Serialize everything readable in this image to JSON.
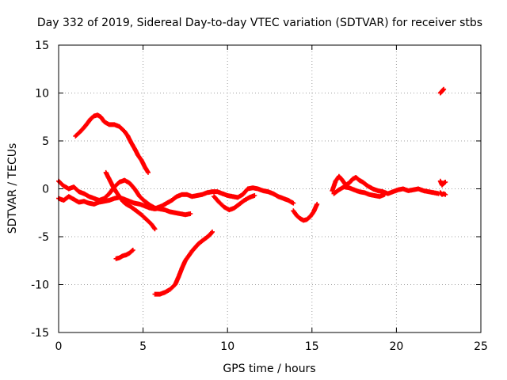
{
  "chart_data": {
    "type": "scatter",
    "title": "Day 332 of 2019, Sidereal Day-to-day VTEC variation (SDTVAR) for receiver stbs",
    "xlabel": "GPS time / hours",
    "ylabel": "SDTVAR / TECUs",
    "xlim": [
      0,
      25
    ],
    "ylim": [
      -15,
      15
    ],
    "xticks": [
      0,
      5,
      10,
      15,
      20,
      25
    ],
    "yticks": [
      -15,
      -10,
      -5,
      0,
      5,
      10,
      15
    ],
    "xtick_labels": [
      "0",
      "5",
      "10",
      "15",
      "20",
      "25"
    ],
    "ytick_labels": [
      "-15",
      "-10",
      "-5",
      "0",
      "5",
      "10",
      "15"
    ],
    "grid": true,
    "marker": "plus",
    "series": [
      {
        "name": "arc-high-morning",
        "color": "#ff0000",
        "x": [
          1.0,
          1.3,
          1.6,
          1.9,
          2.1,
          2.3,
          2.5,
          2.7,
          3.0,
          3.3,
          3.6,
          3.9,
          4.1,
          4.3,
          4.5,
          4.7,
          4.9,
          5.1,
          5.3
        ],
        "y": [
          5.5,
          6.0,
          6.6,
          7.3,
          7.6,
          7.7,
          7.5,
          7.0,
          6.7,
          6.7,
          6.5,
          6.0,
          5.5,
          4.8,
          4.2,
          3.5,
          3.0,
          2.3,
          1.7
        ]
      },
      {
        "name": "arc-low-rising",
        "color": "#ff0000",
        "x": [
          5.7,
          6.0,
          6.3,
          6.6,
          6.9,
          7.1,
          7.3,
          7.5,
          7.7,
          7.9,
          8.1,
          8.3,
          8.6,
          8.9,
          9.1
        ],
        "y": [
          -11.0,
          -11.0,
          -10.8,
          -10.5,
          -10.0,
          -9.2,
          -8.3,
          -7.5,
          -7.0,
          -6.5,
          -6.1,
          -5.7,
          -5.3,
          -4.9,
          -4.5
        ]
      },
      {
        "name": "arc-short-low",
        "color": "#ff0000",
        "x": [
          3.4,
          3.6,
          3.8,
          4.0,
          4.2,
          4.4
        ],
        "y": [
          -7.3,
          -7.2,
          -7.0,
          -6.9,
          -6.7,
          -6.4
        ]
      },
      {
        "name": "arc-descending",
        "color": "#ff0000",
        "x": [
          2.8,
          3.0,
          3.2,
          3.4,
          3.6,
          3.8,
          4.0,
          4.3,
          4.6,
          4.9,
          5.2,
          5.5,
          5.7
        ],
        "y": [
          1.7,
          1.0,
          0.3,
          -0.3,
          -0.8,
          -1.3,
          -1.6,
          -1.9,
          -2.3,
          -2.7,
          -3.2,
          -3.7,
          -4.2
        ]
      },
      {
        "name": "band-morning-a",
        "color": "#ff0000",
        "x": [
          0.0,
          0.3,
          0.6,
          0.9,
          1.2,
          1.5,
          1.8,
          2.1,
          2.4,
          2.7,
          3.0,
          3.3,
          3.6,
          3.9,
          4.2,
          4.5,
          4.8,
          5.1,
          5.4,
          5.7,
          6.0,
          6.3,
          6.6,
          6.9,
          7.2,
          7.5,
          7.8
        ],
        "y": [
          0.8,
          0.3,
          0.0,
          0.2,
          -0.3,
          -0.5,
          -0.8,
          -1.0,
          -1.2,
          -1.0,
          -0.5,
          0.2,
          0.7,
          0.9,
          0.6,
          0.0,
          -0.8,
          -1.3,
          -1.7,
          -2.0,
          -2.1,
          -2.2,
          -2.4,
          -2.5,
          -2.6,
          -2.7,
          -2.6
        ]
      },
      {
        "name": "band-morning-b",
        "color": "#ff0000",
        "x": [
          0.0,
          0.3,
          0.6,
          0.9,
          1.2,
          1.5,
          1.8,
          2.1,
          2.4,
          2.7,
          3.0,
          3.3,
          3.6,
          3.9,
          4.2,
          4.5,
          4.8,
          5.1,
          5.4,
          5.7,
          6.0
        ],
        "y": [
          -1.0,
          -1.2,
          -0.8,
          -1.1,
          -1.4,
          -1.3,
          -1.5,
          -1.6,
          -1.4,
          -1.3,
          -1.2,
          -1.0,
          -0.9,
          -1.1,
          -1.3,
          -1.5,
          -1.6,
          -1.8,
          -2.0,
          -2.1,
          -2.0
        ]
      },
      {
        "name": "band-midday",
        "color": "#ff0000",
        "x": [
          5.8,
          6.1,
          6.4,
          6.7,
          7.0,
          7.3,
          7.6,
          7.9,
          8.2,
          8.5,
          8.8,
          9.1,
          9.4,
          9.7,
          10.0,
          10.3,
          10.6,
          10.9,
          11.2,
          11.5,
          11.8,
          12.1,
          12.4,
          12.7,
          13.0,
          13.3,
          13.6,
          13.9
        ],
        "y": [
          -2.0,
          -1.8,
          -1.5,
          -1.2,
          -0.8,
          -0.6,
          -0.6,
          -0.8,
          -0.7,
          -0.6,
          -0.4,
          -0.3,
          -0.3,
          -0.5,
          -0.7,
          -0.8,
          -0.9,
          -0.6,
          0.0,
          0.1,
          0.0,
          -0.2,
          -0.3,
          -0.5,
          -0.8,
          -1.0,
          -1.2,
          -1.5
        ]
      },
      {
        "name": "band-midday-low",
        "color": "#ff0000",
        "x": [
          9.2,
          9.5,
          9.8,
          10.1,
          10.4,
          10.7,
          11.0,
          11.3,
          11.6
        ],
        "y": [
          -0.8,
          -1.4,
          -1.9,
          -2.2,
          -2.0,
          -1.6,
          -1.2,
          -0.9,
          -0.7
        ]
      },
      {
        "name": "band-late",
        "color": "#ff0000",
        "x": [
          13.9,
          14.1,
          14.3,
          14.5,
          14.7,
          14.9,
          15.1,
          15.3
        ],
        "y": [
          -2.3,
          -2.8,
          -3.1,
          -3.3,
          -3.2,
          -2.9,
          -2.4,
          -1.6
        ]
      },
      {
        "name": "band-evening",
        "color": "#ff0000",
        "x": [
          16.2,
          16.4,
          16.6,
          16.8,
          17.0,
          17.2,
          17.4,
          17.6,
          17.8,
          18.0,
          18.3,
          18.6,
          18.9,
          19.2,
          19.5,
          19.8,
          20.1,
          20.4,
          20.7,
          21.0,
          21.3,
          21.6,
          21.9,
          22.2,
          22.5
        ],
        "y": [
          -0.2,
          0.8,
          1.3,
          0.9,
          0.4,
          0.6,
          1.0,
          1.2,
          0.9,
          0.7,
          0.3,
          0.0,
          -0.2,
          -0.3,
          -0.5,
          -0.3,
          -0.1,
          0.0,
          -0.2,
          -0.1,
          0.0,
          -0.2,
          -0.3,
          -0.4,
          -0.5
        ]
      },
      {
        "name": "band-evening-low",
        "color": "#ff0000",
        "x": [
          16.3,
          16.6,
          16.9,
          17.2,
          17.5,
          17.8,
          18.1,
          18.4,
          18.7,
          19.0,
          19.3
        ],
        "y": [
          -0.5,
          -0.1,
          0.2,
          0.1,
          -0.1,
          -0.3,
          -0.4,
          -0.6,
          -0.7,
          -0.8,
          -0.6
        ]
      },
      {
        "name": "tail-end",
        "color": "#ff0000",
        "x": [
          22.6,
          22.7,
          22.8,
          22.9
        ],
        "y": [
          0.8,
          0.4,
          0.6,
          0.7
        ]
      },
      {
        "name": "tail-end-low",
        "color": "#ff0000",
        "x": [
          22.6,
          22.7,
          22.8,
          22.9
        ],
        "y": [
          -0.4,
          -0.6,
          -0.5,
          -0.6
        ]
      },
      {
        "name": "outlier-high",
        "color": "#ff0000",
        "x": [
          22.6,
          22.7,
          22.8
        ],
        "y": [
          10.0,
          10.2,
          10.4
        ]
      }
    ]
  }
}
